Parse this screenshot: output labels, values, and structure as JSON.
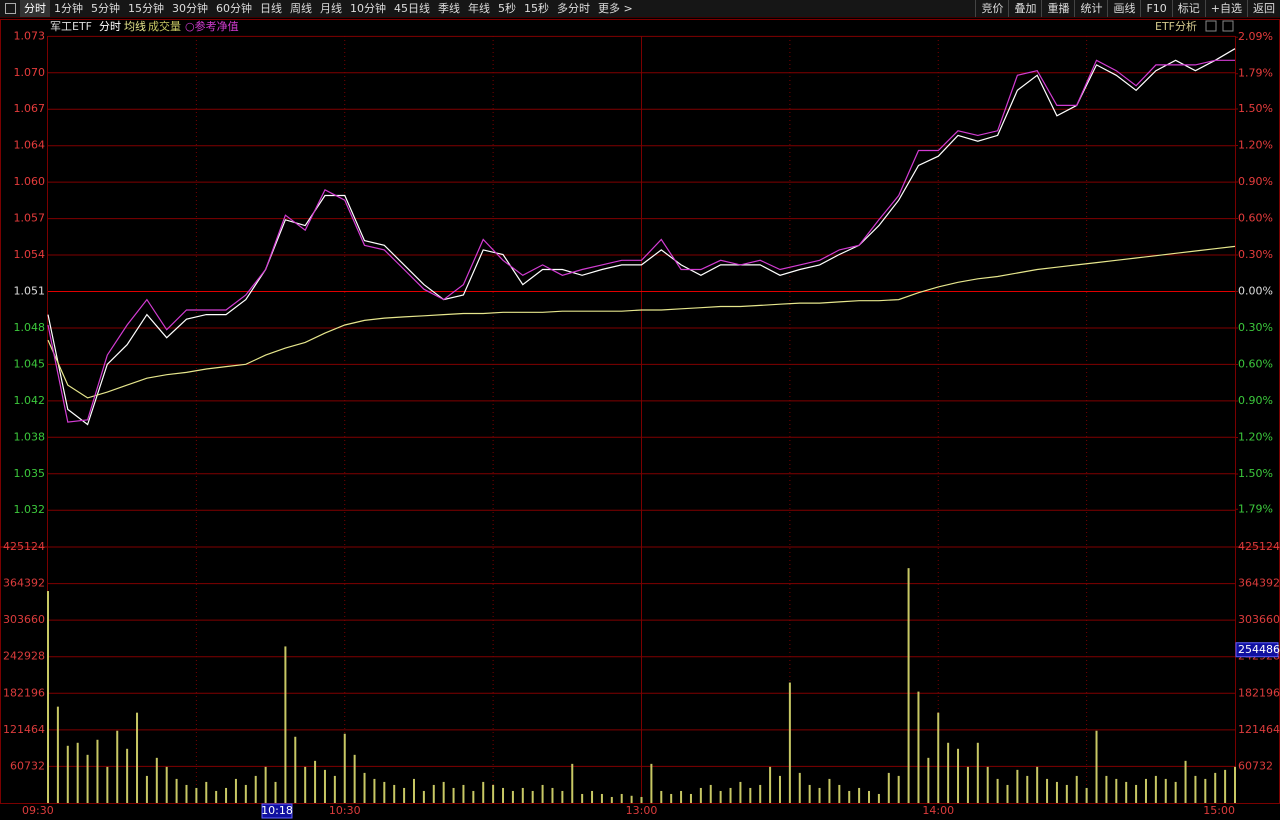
{
  "toolbar": {
    "left": [
      "分时",
      "1分钟",
      "5分钟",
      "15分钟",
      "30分钟",
      "60分钟",
      "日线",
      "周线",
      "月线",
      "10分钟",
      "45日线",
      "季线",
      "年线",
      "5秒",
      "15秒",
      "多分时",
      "更多 >"
    ],
    "right": [
      "竞价",
      "叠加",
      "重播",
      "统计",
      "画线",
      "F10",
      "标记",
      "+自选",
      "返回"
    ]
  },
  "panel_tool": "ETF分析",
  "cursor": {
    "time": "10:18",
    "volume": 254486
  },
  "chart_data": [
    {
      "type": "line",
      "title": "军工ETF",
      "mode": "分时",
      "xlim": [
        0,
        240
      ],
      "x": [
        0,
        4,
        8,
        12,
        16,
        20,
        24,
        28,
        32,
        36,
        40,
        44,
        48,
        52,
        56,
        60,
        64,
        68,
        72,
        76,
        80,
        84,
        88,
        92,
        96,
        100,
        104,
        108,
        112,
        116,
        120,
        124,
        128,
        132,
        136,
        140,
        144,
        148,
        152,
        156,
        160,
        164,
        168,
        172,
        176,
        180,
        184,
        188,
        192,
        196,
        200,
        204,
        208,
        212,
        216,
        220,
        224,
        228,
        232,
        236,
        240
      ],
      "ylim": [
        1.0289,
        1.0731
      ],
      "yticks": [
        {
          "value": 1.073071,
          "label": "1.073"
        },
        {
          "value": 1.069918,
          "label": "1.070"
        },
        {
          "value": 1.066765,
          "label": "1.067"
        },
        {
          "value": 1.063612,
          "label": "1.064"
        },
        {
          "value": 1.060459,
          "label": "1.060"
        },
        {
          "value": 1.057306,
          "label": "1.057"
        },
        {
          "value": 1.054153,
          "label": "1.054"
        },
        {
          "value": 1.051,
          "label": "1.051"
        },
        {
          "value": 1.047847,
          "label": "1.048"
        },
        {
          "value": 1.044694,
          "label": "1.045"
        },
        {
          "value": 1.041541,
          "label": "1.042"
        },
        {
          "value": 1.038388,
          "label": "1.038"
        },
        {
          "value": 1.035235,
          "label": "1.035"
        },
        {
          "value": 1.032082,
          "label": "1.032"
        }
      ],
      "y2lim": [
        -2.1,
        2.1
      ],
      "y2ticks": [
        {
          "value": 2.09,
          "label": "2.09%"
        },
        {
          "value": 1.79,
          "label": "1.79%"
        },
        {
          "value": 1.5,
          "label": "1.50%"
        },
        {
          "value": 1.2,
          "label": "1.20%"
        },
        {
          "value": 0.9,
          "label": "0.90%"
        },
        {
          "value": 0.6,
          "label": "0.60%"
        },
        {
          "value": 0.3,
          "label": "0.30%"
        },
        {
          "value": 0,
          "label": "0.00%"
        },
        {
          "value": -0.3,
          "label": "0.30%"
        },
        {
          "value": -0.6,
          "label": "0.60%"
        },
        {
          "value": -0.9,
          "label": "0.90%"
        },
        {
          "value": -1.2,
          "label": "1.20%"
        },
        {
          "value": -1.5,
          "label": "1.50%"
        },
        {
          "value": -1.79,
          "label": "1.79%"
        }
      ],
      "series": [
        {
          "name": "分时",
          "color": "#ffffff",
          "values": [
            1.049,
            1.0408,
            1.0395,
            1.0447,
            1.0464,
            1.049,
            1.047,
            1.0486,
            1.049,
            1.049,
            1.0503,
            1.0529,
            1.0572,
            1.0567,
            1.0593,
            1.0593,
            1.0554,
            1.055,
            1.0533,
            1.0516,
            1.0503,
            1.0507,
            1.0546,
            1.0542,
            1.0516,
            1.0529,
            1.0529,
            1.0524,
            1.0529,
            1.0533,
            1.0533,
            1.0546,
            1.0533,
            1.0524,
            1.0533,
            1.0533,
            1.0533,
            1.0524,
            1.0529,
            1.0533,
            1.0542,
            1.055,
            1.0567,
            1.0589,
            1.0619,
            1.0627,
            1.0645,
            1.064,
            1.0645,
            1.0684,
            1.0697,
            1.0662,
            1.0671,
            1.0706,
            1.0697,
            1.0684,
            1.0701,
            1.071,
            1.0701,
            1.071,
            1.072
          ]
        },
        {
          "name": "均线",
          "color": "#e6e68c",
          "values": [
            1.0468,
            1.0429,
            1.0418,
            1.0423,
            1.0429,
            1.0435,
            1.0438,
            1.044,
            1.0443,
            1.0445,
            1.0447,
            1.0455,
            1.0461,
            1.0466,
            1.0474,
            1.0481,
            1.0485,
            1.0487,
            1.0488,
            1.0489,
            1.049,
            1.0491,
            1.0491,
            1.0492,
            1.0492,
            1.0492,
            1.0493,
            1.0493,
            1.0493,
            1.0493,
            1.0494,
            1.0494,
            1.0495,
            1.0496,
            1.0497,
            1.0497,
            1.0498,
            1.0499,
            1.05,
            1.05,
            1.0501,
            1.0502,
            1.0502,
            1.0503,
            1.0509,
            1.0514,
            1.0518,
            1.0521,
            1.0523,
            1.0526,
            1.0529,
            1.0531,
            1.0533,
            1.0535,
            1.0537,
            1.0539,
            1.0541,
            1.0543,
            1.0545,
            1.0547,
            1.0549
          ]
        },
        {
          "name": "○参考净值",
          "color": "#d23cd2",
          "values": [
            1.0481,
            1.0397,
            1.0399,
            1.0455,
            1.0481,
            1.0503,
            1.0477,
            1.0494,
            1.0494,
            1.0494,
            1.0507,
            1.0529,
            1.0576,
            1.0563,
            1.0598,
            1.0589,
            1.055,
            1.0546,
            1.0529,
            1.0512,
            1.0503,
            1.0516,
            1.0555,
            1.0537,
            1.0524,
            1.0533,
            1.0524,
            1.0529,
            1.0533,
            1.0537,
            1.0537,
            1.0555,
            1.0529,
            1.0529,
            1.0537,
            1.0533,
            1.0537,
            1.0529,
            1.0533,
            1.0537,
            1.0546,
            1.055,
            1.0572,
            1.0593,
            1.0632,
            1.0632,
            1.0649,
            1.0645,
            1.0649,
            1.0697,
            1.0701,
            1.0671,
            1.0671,
            1.071,
            1.0701,
            1.0688,
            1.0706,
            1.0706,
            1.0706,
            1.071,
            1.071
          ]
        }
      ]
    },
    {
      "type": "bar",
      "xlim": [
        0,
        240
      ],
      "xticks": [
        {
          "value": 0,
          "label": "09:30"
        },
        {
          "value": 60,
          "label": "10:30"
        },
        {
          "value": 120,
          "label": "13:00"
        },
        {
          "value": 180,
          "label": "14:00"
        },
        {
          "value": 240,
          "label": "15:00"
        }
      ],
      "x": [
        0,
        2,
        4,
        6,
        8,
        10,
        12,
        14,
        16,
        18,
        20,
        22,
        24,
        26,
        28,
        30,
        32,
        34,
        36,
        38,
        40,
        42,
        44,
        46,
        48,
        50,
        52,
        54,
        56,
        58,
        60,
        62,
        64,
        66,
        68,
        70,
        72,
        74,
        76,
        78,
        80,
        82,
        84,
        86,
        88,
        90,
        92,
        94,
        96,
        98,
        100,
        102,
        104,
        106,
        108,
        110,
        112,
        114,
        116,
        118,
        120,
        122,
        124,
        126,
        128,
        130,
        132,
        134,
        136,
        138,
        140,
        142,
        144,
        146,
        148,
        150,
        152,
        154,
        156,
        158,
        160,
        162,
        164,
        166,
        168,
        170,
        172,
        174,
        176,
        178,
        180,
        182,
        184,
        186,
        188,
        190,
        192,
        194,
        196,
        198,
        200,
        202,
        204,
        206,
        208,
        210,
        212,
        214,
        216,
        218,
        220,
        222,
        224,
        226,
        228,
        230,
        232,
        234,
        236,
        238,
        240
      ],
      "ylim": [
        0,
        425124
      ],
      "yticks": [
        60732,
        121464,
        182196,
        242928,
        303660,
        364392,
        425124
      ],
      "series": [
        {
          "name": "成交量",
          "color": "#c8c864",
          "values": [
            352000,
            160000,
            95000,
            100000,
            80000,
            105000,
            60000,
            120000,
            90000,
            150000,
            45000,
            75000,
            60000,
            40000,
            30000,
            25000,
            35000,
            20000,
            25000,
            40000,
            30000,
            45000,
            60000,
            35000,
            260000,
            110000,
            60000,
            70000,
            55000,
            45000,
            115000,
            80000,
            50000,
            40000,
            35000,
            30000,
            25000,
            40000,
            20000,
            30000,
            35000,
            25000,
            30000,
            20000,
            35000,
            30000,
            25000,
            20000,
            25000,
            20000,
            30000,
            25000,
            20000,
            65000,
            15000,
            20000,
            15000,
            10000,
            15000,
            12000,
            10000,
            65000,
            20000,
            15000,
            20000,
            15000,
            25000,
            30000,
            20000,
            25000,
            35000,
            25000,
            30000,
            60000,
            45000,
            200000,
            50000,
            30000,
            25000,
            40000,
            30000,
            20000,
            25000,
            20000,
            15000,
            50000,
            45000,
            390000,
            185000,
            75000,
            150000,
            100000,
            90000,
            60000,
            100000,
            60000,
            40000,
            30000,
            55000,
            45000,
            60000,
            40000,
            35000,
            30000,
            45000,
            25000,
            120000,
            45000,
            40000,
            35000,
            30000,
            40000,
            45000,
            40000,
            35000,
            70000,
            45000,
            40000,
            50000,
            55000,
            60000
          ]
        }
      ]
    }
  ]
}
